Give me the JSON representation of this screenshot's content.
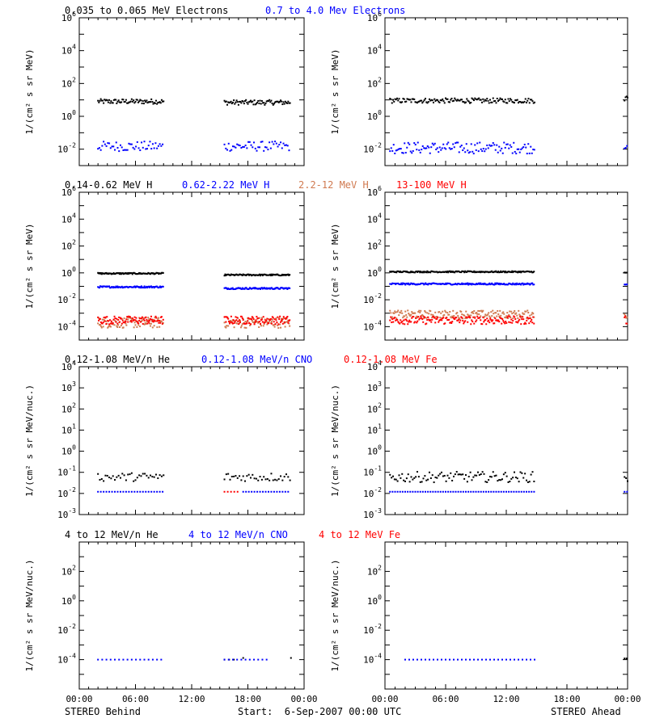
{
  "colors": {
    "black": "#000000",
    "blue": "#0000ff",
    "orange": "#d07a50",
    "red": "#ff0000"
  },
  "titles": {
    "row1": [
      "0.035 to 0.065 MeV Electrons",
      "0.7 to 4.0 Mev Electrons"
    ],
    "row2": [
      "0.14-0.62 MeV H",
      "0.62-2.22 MeV H",
      "2.2-12 MeV H",
      "13-100 MeV H"
    ],
    "row3": [
      "0.12-1.08 MeV/n He",
      "0.12-1.08 MeV/n CNO",
      "0.12-1.08 MeV Fe"
    ],
    "row4": [
      "4 to 12 MeV/n He",
      "4 to 12 MeV/n CNO",
      "4 to 12 MeV Fe"
    ]
  },
  "ylabels": {
    "flux": "1/(cm² s sr MeV)",
    "flux_nuc": "1/(cm² s sr MeV/nuc.)"
  },
  "xaxis": {
    "ticks": [
      "00:00",
      "06:00",
      "12:00",
      "18:00",
      "00:00"
    ]
  },
  "footer": {
    "left": "STEREO Behind",
    "center": "Start:  6-Sep-2007 00:00 UTC",
    "right": "STEREO Ahead"
  },
  "chart_data": [
    {
      "id": "electrons-behind",
      "type": "scatter",
      "yscale": "log",
      "ylim_exp": [
        -3,
        6
      ],
      "y_ticks": [
        -2,
        0,
        2,
        4,
        6
      ],
      "xlim_hours": [
        0,
        24
      ],
      "series": [
        {
          "name": "0.035 to 0.065 MeV Electrons",
          "color": "black",
          "segments": [
            [
              2,
              9,
              8,
              0.15
            ],
            [
              15.5,
              22.5,
              7,
              0.15
            ]
          ],
          "step": 0.1,
          "spread": 0.15
        },
        {
          "name": "0.7 to 4.0 Mev Electrons",
          "color": "blue",
          "segments": [
            [
              2,
              9,
              0.015,
              0.3
            ],
            [
              15.5,
              22.5,
              0.015,
              0.3
            ]
          ],
          "step": 0.15,
          "spread": 0.3
        }
      ]
    },
    {
      "id": "electrons-ahead",
      "type": "scatter",
      "yscale": "log",
      "ylim_exp": [
        -3,
        6
      ],
      "y_ticks": [
        -2,
        0,
        2,
        4,
        6
      ],
      "xlim_hours": [
        0,
        24
      ],
      "series": [
        {
          "name": "0.035 to 0.065 MeV Electrons",
          "color": "black",
          "segments": [
            [
              0.5,
              14.8,
              9,
              0.15
            ],
            [
              23.7,
              24,
              12,
              0.2
            ]
          ],
          "step": 0.1,
          "spread": 0.15
        },
        {
          "name": "0.7 to 4.0 Mev Electrons",
          "color": "blue",
          "segments": [
            [
              0.5,
              14.8,
              0.012,
              0.35
            ],
            [
              23.7,
              24,
              0.02,
              0.3
            ]
          ],
          "step": 0.12,
          "spread": 0.35
        }
      ]
    },
    {
      "id": "protons-behind",
      "type": "scatter",
      "yscale": "log",
      "ylim_exp": [
        -5,
        6
      ],
      "y_ticks": [
        -4,
        -2,
        0,
        2,
        4,
        6
      ],
      "xlim_hours": [
        0,
        24
      ],
      "series": [
        {
          "name": "0.14-0.62 MeV H",
          "color": "black",
          "segments": [
            [
              2,
              9,
              0.9,
              0.05
            ],
            [
              15.5,
              22.5,
              0.7,
              0.05
            ]
          ],
          "step": 0.08,
          "spread": 0.05
        },
        {
          "name": "0.62-2.22 MeV H",
          "color": "blue",
          "segments": [
            [
              2,
              9,
              0.09,
              0.06
            ],
            [
              15.5,
              22.5,
              0.07,
              0.06
            ]
          ],
          "step": 0.08,
          "spread": 0.06
        },
        {
          "name": "2.2-12 MeV H",
          "color": "orange",
          "segments": [
            [
              2,
              9,
              0.0002,
              0.4
            ],
            [
              15.5,
              22.5,
              0.0002,
              0.4
            ]
          ],
          "step": 0.08,
          "spread": 0.4
        },
        {
          "name": "13-100 MeV H",
          "color": "red",
          "segments": [
            [
              2,
              9,
              0.0003,
              0.3
            ],
            [
              15.5,
              22.5,
              0.0003,
              0.3
            ]
          ],
          "step": 0.08,
          "spread": 0.3
        }
      ]
    },
    {
      "id": "protons-ahead",
      "type": "scatter",
      "yscale": "log",
      "ylim_exp": [
        -5,
        6
      ],
      "y_ticks": [
        -4,
        -2,
        0,
        2,
        4,
        6
      ],
      "xlim_hours": [
        0,
        24
      ],
      "series": [
        {
          "name": "0.14-0.62 MeV H",
          "color": "black",
          "segments": [
            [
              0.5,
              14.8,
              1.2,
              0.05
            ],
            [
              23.7,
              24,
              1.0,
              0.05
            ]
          ],
          "step": 0.08,
          "spread": 0.05
        },
        {
          "name": "0.62-2.22 MeV H",
          "color": "blue",
          "segments": [
            [
              0.5,
              14.8,
              0.15,
              0.06
            ],
            [
              23.7,
              24,
              0.15,
              0.06
            ]
          ],
          "step": 0.08,
          "spread": 0.06
        },
        {
          "name": "2.2-12 MeV H",
          "color": "orange",
          "segments": [
            [
              0.5,
              14.8,
              0.0008,
              0.3
            ],
            [
              23.7,
              24,
              0.0008,
              0.3
            ]
          ],
          "step": 0.08,
          "spread": 0.3
        },
        {
          "name": "13-100 MeV H",
          "color": "red",
          "segments": [
            [
              0.5,
              14.8,
              0.0003,
              0.3
            ],
            [
              23.7,
              24,
              0.0003,
              0.3
            ]
          ],
          "step": 0.08,
          "spread": 0.3
        }
      ]
    },
    {
      "id": "ions-low-behind",
      "type": "scatter",
      "yscale": "log",
      "ylim_exp": [
        -3,
        4
      ],
      "y_ticks": [
        -3,
        -2,
        -1,
        0,
        1,
        2,
        3,
        4
      ],
      "xlim_hours": [
        0,
        24
      ],
      "series": [
        {
          "name": "0.12-1.08 MeV/n He",
          "color": "black",
          "segments": [
            [
              2,
              9,
              0.06,
              0.2
            ],
            [
              15.5,
              22.5,
              0.06,
              0.2
            ]
          ],
          "step": 0.2,
          "spread": 0.2
        },
        {
          "name": "0.12-1.08 MeV/n CNO",
          "color": "blue",
          "segments": [
            [
              2,
              9,
              0.012,
              0
            ],
            [
              17.5,
              22.5,
              0.012,
              0
            ]
          ],
          "step": 0.3,
          "spread": 0
        },
        {
          "name": "0.12-1.08 MeV Fe",
          "color": "red",
          "segments": [
            [
              15.5,
              17.2,
              0.012,
              0
            ]
          ],
          "step": 0.35,
          "spread": 0
        }
      ]
    },
    {
      "id": "ions-low-ahead",
      "type": "scatter",
      "yscale": "log",
      "ylim_exp": [
        -3,
        4
      ],
      "y_ticks": [
        -3,
        -2,
        -1,
        0,
        1,
        2,
        3,
        4
      ],
      "xlim_hours": [
        0,
        24
      ],
      "series": [
        {
          "name": "0.12-1.08 MeV/n He",
          "color": "black",
          "segments": [
            [
              0.5,
              14.8,
              0.06,
              0.25
            ],
            [
              23.7,
              24,
              0.05,
              0.2
            ]
          ],
          "step": 0.15,
          "spread": 0.25
        },
        {
          "name": "0.12-1.08 MeV/n CNO",
          "color": "blue",
          "segments": [
            [
              0.5,
              14.8,
              0.012,
              0
            ],
            [
              23.7,
              24,
              0.012,
              0
            ]
          ],
          "step": 0.25,
          "spread": 0
        },
        {
          "name": "0.12-1.08 MeV Fe",
          "color": "red",
          "segments": [],
          "step": 0.3,
          "spread": 0
        }
      ]
    },
    {
      "id": "ions-high-behind",
      "type": "scatter",
      "yscale": "log",
      "ylim_exp": [
        -6,
        4
      ],
      "y_ticks": [
        -4,
        -2,
        0,
        2
      ],
      "xlim_hours": [
        0,
        24
      ],
      "series": [
        {
          "name": "4 to 12 MeV/n He",
          "color": "black",
          "segments": [
            [
              15.5,
              16.5,
              0.0001,
              0
            ],
            [
              17.5,
              17.6,
              0.00013,
              0
            ],
            [
              22.6,
              22.7,
              0.00013,
              0
            ]
          ],
          "step": 0.5,
          "spread": 0
        },
        {
          "name": "4 to 12 MeV/n CNO",
          "color": "blue",
          "segments": [
            [
              2,
              9,
              0.0001,
              0
            ],
            [
              15.5,
              20,
              0.0001,
              0
            ]
          ],
          "step": 0.45,
          "spread": 0
        },
        {
          "name": "4 to 12 MeV Fe",
          "color": "red",
          "segments": [],
          "step": 0.5,
          "spread": 0
        }
      ]
    },
    {
      "id": "ions-high-ahead",
      "type": "scatter",
      "yscale": "log",
      "ylim_exp": [
        -6,
        4
      ],
      "y_ticks": [
        -4,
        -2,
        0,
        2
      ],
      "xlim_hours": [
        0,
        24
      ],
      "series": [
        {
          "name": "4 to 12 MeV/n He",
          "color": "black",
          "segments": [
            [
              23.7,
              24,
              0.00012,
              0
            ]
          ],
          "step": 0.2,
          "spread": 0
        },
        {
          "name": "4 to 12 MeV/n CNO",
          "color": "blue",
          "segments": [
            [
              2,
              14.8,
              0.0001,
              0
            ]
          ],
          "step": 0.4,
          "spread": 0
        },
        {
          "name": "4 to 12 MeV Fe",
          "color": "red",
          "segments": [],
          "step": 0.5,
          "spread": 0
        }
      ]
    }
  ]
}
